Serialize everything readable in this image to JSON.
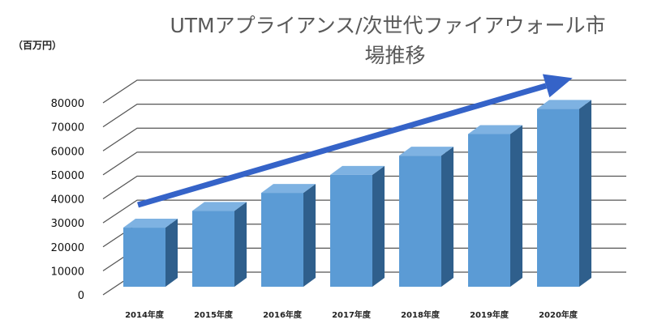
{
  "chart_data": {
    "type": "bar",
    "title_line1": "UTMアプライアンス/次世代ファイアウォール市",
    "title_line2": "場推移",
    "unit_label": "（百万円）",
    "categories": [
      "2014年度",
      "2015年度",
      "2016年度",
      "2017年度",
      "2018年度",
      "2019年度",
      "2020年度"
    ],
    "values": [
      28000,
      35000,
      42500,
      50000,
      58000,
      67000,
      77500
    ],
    "y_ticks": [
      "0",
      "10000",
      "20000",
      "30000",
      "40000",
      "50000",
      "60000",
      "70000",
      "80000"
    ],
    "ylim": [
      0,
      80000
    ],
    "three_d": true,
    "grid": true,
    "trend_arrow": true,
    "colors": {
      "bar_front": "#5b9bd5",
      "bar_top": "#7eb2e2",
      "bar_side": "#2f5f8c",
      "arrow": "#3563c8",
      "grid": "#555555"
    }
  }
}
